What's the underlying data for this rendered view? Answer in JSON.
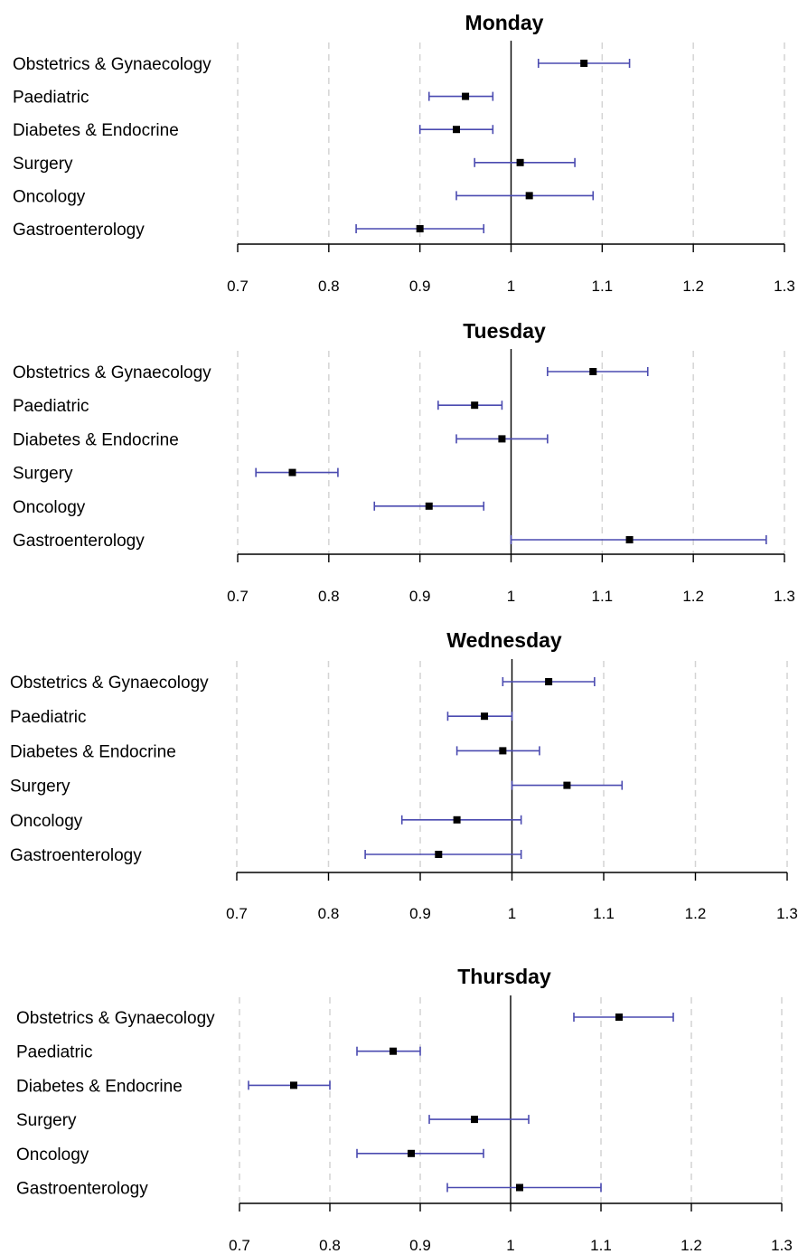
{
  "chart_data": [
    {
      "type": "forest",
      "title": "Monday",
      "categories": [
        "Obstetrics & Gynaecology",
        "Paediatric",
        "Diabetes & Endocrine",
        "Surgery",
        "Oncology",
        "Gastroenterology"
      ],
      "estimates": [
        1.08,
        0.95,
        0.94,
        1.01,
        1.02,
        0.9
      ],
      "lower": [
        1.03,
        0.91,
        0.9,
        0.96,
        0.94,
        0.83
      ],
      "upper": [
        1.13,
        0.98,
        0.98,
        1.07,
        1.09,
        0.97
      ],
      "reference_line": 1.0,
      "xlim": [
        0.7,
        1.3
      ],
      "xticks": [
        "0.7",
        "0.8",
        "0.9",
        "1",
        "1.1",
        "1.2",
        "1.3"
      ],
      "grid": "vertical dashed"
    },
    {
      "type": "forest",
      "title": "Tuesday",
      "categories": [
        "Obstetrics & Gynaecology",
        "Paediatric",
        "Diabetes & Endocrine",
        "Surgery",
        "Oncology",
        "Gastroenterology"
      ],
      "estimates": [
        1.09,
        0.96,
        0.99,
        0.76,
        0.91,
        1.13
      ],
      "lower": [
        1.04,
        0.92,
        0.94,
        0.72,
        0.85,
        1.0
      ],
      "upper": [
        1.15,
        0.99,
        1.04,
        0.81,
        0.97,
        1.28
      ],
      "reference_line": 1.0,
      "xlim": [
        0.7,
        1.3
      ],
      "xticks": [
        "0.7",
        "0.8",
        "0.9",
        "1",
        "1.1",
        "1.2",
        "1.3"
      ],
      "grid": "vertical dashed"
    },
    {
      "type": "forest",
      "title": "Wednesday",
      "categories": [
        "Obstetrics & Gynaecology",
        "Paediatric",
        "Diabetes & Endocrine",
        "Surgery",
        "Oncology",
        "Gastroenterology"
      ],
      "estimates": [
        1.04,
        0.97,
        0.99,
        1.06,
        0.94,
        0.92
      ],
      "lower": [
        0.99,
        0.93,
        0.94,
        1.0,
        0.88,
        0.84
      ],
      "upper": [
        1.09,
        1.0,
        1.03,
        1.12,
        1.01,
        1.01
      ],
      "reference_line": 1.0,
      "xlim": [
        0.7,
        1.3
      ],
      "xticks": [
        "0.7",
        "0.8",
        "0.9",
        "1",
        "1.1",
        "1.2",
        "1.3"
      ],
      "grid": "vertical dashed"
    },
    {
      "type": "forest",
      "title": "Thursday",
      "categories": [
        "Obstetrics & Gynaecology",
        "Paediatric",
        "Diabetes & Endocrine",
        "Surgery",
        "Oncology",
        "Gastroenterology"
      ],
      "estimates": [
        1.12,
        0.87,
        0.76,
        0.96,
        0.89,
        1.01
      ],
      "lower": [
        1.07,
        0.83,
        0.71,
        0.91,
        0.83,
        0.93
      ],
      "upper": [
        1.18,
        0.9,
        0.8,
        1.02,
        0.97,
        1.1
      ],
      "reference_line": 1.0,
      "xlim": [
        0.7,
        1.3
      ],
      "xticks": [
        "0.7",
        "0.8",
        "0.9",
        "1",
        "1.1",
        "1.2",
        "1.3"
      ],
      "grid": "vertical dashed"
    }
  ],
  "colors": {
    "ci_line": "#4a4ab0",
    "point": "#000000",
    "grid": "#d4d4d4",
    "axis": "#000000"
  }
}
